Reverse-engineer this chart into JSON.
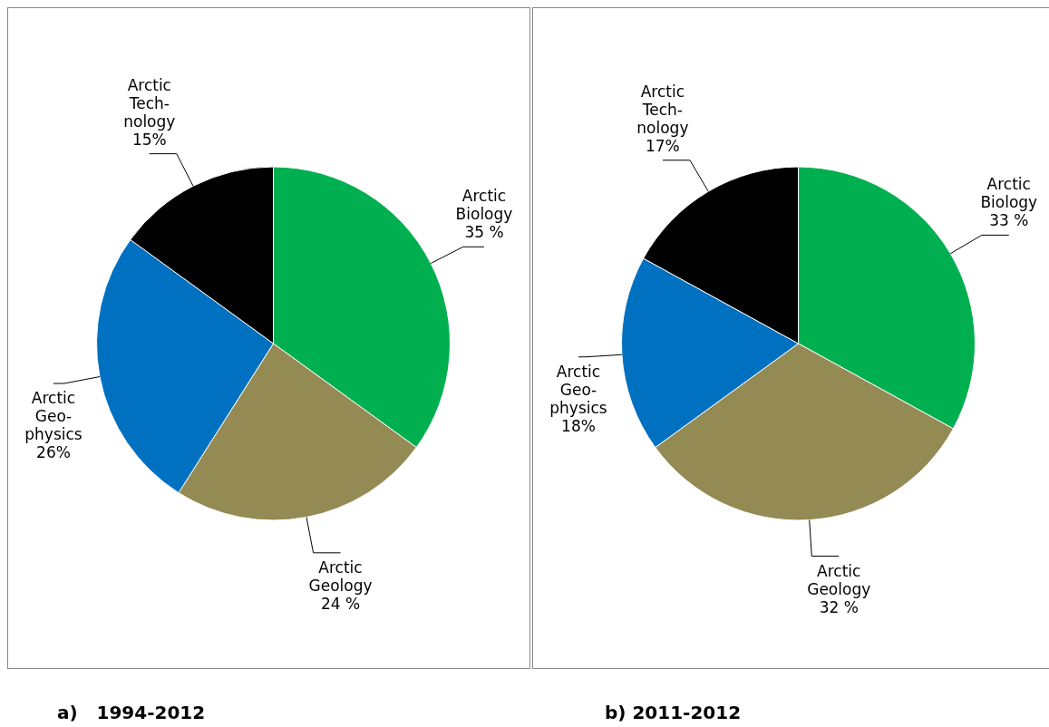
{
  "chart_data": [
    {
      "type": "pie",
      "title": "a)   1994-2012",
      "categories": [
        "Arctic Biology",
        "Arctic Geology",
        "Arctic Geo- physics",
        "Arctic Tech- nology"
      ],
      "values": [
        35,
        24,
        26,
        15
      ],
      "value_labels": [
        "35 %",
        "24 %",
        "26%",
        "15%"
      ],
      "colors": [
        "#00b050",
        "#948a54",
        "#0070c0",
        "#000000"
      ],
      "legend": false
    },
    {
      "type": "pie",
      "title": "b) 2011-2012",
      "categories": [
        "Arctic Biology",
        "Arctic Geology",
        "Arctic Geo- physics",
        "Arctic Tech- nology"
      ],
      "values": [
        33,
        32,
        18,
        17
      ],
      "value_labels": [
        "33 %",
        "32 %",
        "18%",
        "17%"
      ],
      "colors": [
        "#00b050",
        "#948a54",
        "#0070c0",
        "#000000"
      ],
      "legend": false
    }
  ]
}
